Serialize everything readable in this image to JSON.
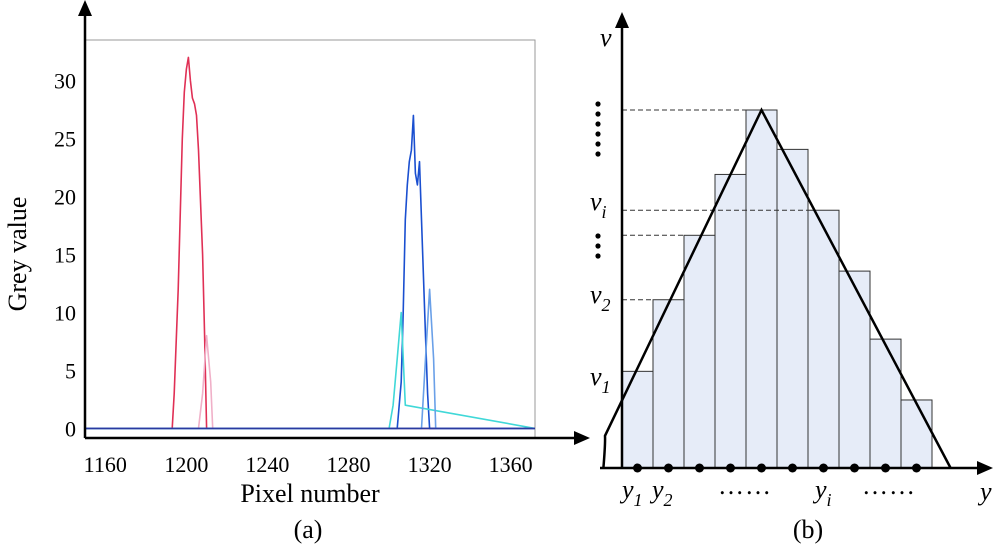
{
  "chart_data": [
    {
      "type": "line",
      "panel_label": "(a)",
      "xlabel": "Pixel number",
      "ylabel": "Grey value",
      "xlim": [
        1150,
        1372
      ],
      "ylim": [
        -1,
        33.5
      ],
      "x_ticks": [
        1160,
        1200,
        1240,
        1280,
        1320,
        1360
      ],
      "y_ticks": [
        0,
        5,
        10,
        15,
        20,
        25,
        30
      ],
      "series": [
        {
          "color": "#e03055",
          "x": [
            1150,
            1193,
            1194,
            1196,
            1198,
            1199,
            1200,
            1201,
            1202,
            1203,
            1204,
            1205,
            1206,
            1208,
            1209,
            1210,
            1372
          ],
          "y": [
            0,
            0,
            3,
            12,
            25,
            29,
            31,
            32,
            30,
            28.5,
            28,
            27,
            24,
            15,
            8,
            0,
            0
          ]
        },
        {
          "color": "#f0b0c8",
          "x": [
            1150,
            1206,
            1208,
            1210,
            1212,
            1213,
            1372
          ],
          "y": [
            0,
            0,
            3,
            8,
            4,
            0,
            0
          ]
        },
        {
          "color": "#1a4fd0",
          "x": [
            1150,
            1304,
            1306,
            1307,
            1308,
            1309,
            1310,
            1311,
            1312,
            1313,
            1314,
            1315,
            1316,
            1318,
            1319,
            1320,
            1372
          ],
          "y": [
            0,
            0,
            4,
            10,
            18,
            21,
            23,
            24,
            27,
            22,
            21,
            23,
            18,
            8,
            3,
            0,
            0
          ]
        },
        {
          "color": "#40d8d8",
          "x": [
            1150,
            1300,
            1302,
            1304,
            1306,
            1308,
            1372
          ],
          "y": [
            0,
            0,
            2,
            6,
            10,
            2,
            0
          ]
        },
        {
          "color": "#6aa0e8",
          "x": [
            1150,
            1316,
            1318,
            1320,
            1322,
            1323,
            1372
          ],
          "y": [
            0,
            0,
            6,
            12,
            6,
            0,
            0
          ]
        }
      ]
    },
    {
      "type": "bar",
      "panel_label": "(b)",
      "xlabel": "y",
      "ylabel": "v",
      "values": [
        0.27,
        0.47,
        0.65,
        0.82,
        1.0,
        0.89,
        0.72,
        0.55,
        0.36,
        0.19
      ],
      "curve": {
        "x": [
          -0.6,
          -0.55,
          4.5,
          10.6
        ],
        "y": [
          0.0,
          0.09,
          1.0,
          0.0
        ]
      },
      "y_labels": [
        {
          "main": "v",
          "sub": "1",
          "at": 0.27
        },
        {
          "main": "v",
          "sub": "2",
          "at": 0.47
        },
        {
          "main": "v",
          "sub": "i",
          "at": 0.72
        }
      ],
      "x_labels": [
        {
          "main": "y",
          "sub": "1"
        },
        {
          "main": "y",
          "sub": "2"
        },
        {
          "main": "y",
          "sub": "i"
        }
      ],
      "dots_h": "……",
      "fill_color": "#e6ecf8"
    }
  ]
}
